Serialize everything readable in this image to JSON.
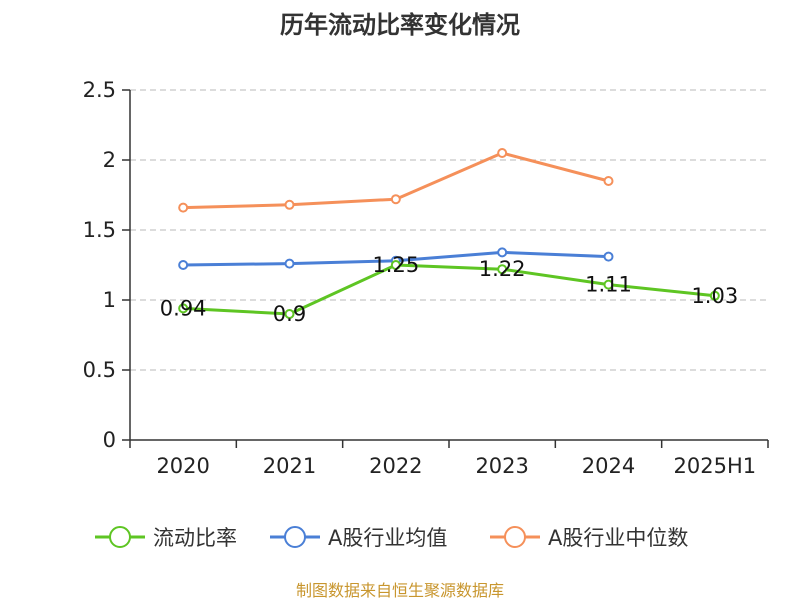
{
  "chart_data": {
    "type": "line",
    "title": "历年流动比率变化情况",
    "xlabel": "",
    "ylabel": "",
    "categories": [
      "2020",
      "2021",
      "2022",
      "2023",
      "2024",
      "2025H1"
    ],
    "ylim": [
      0,
      2.5
    ],
    "yticks": [
      "0",
      "0.5",
      "1",
      "1.5",
      "2",
      "2.5"
    ],
    "grid": true,
    "legend_position": "bottom",
    "series": [
      {
        "name": "流动比率",
        "color": "#5ec523",
        "values": [
          0.94,
          0.9,
          1.25,
          1.22,
          1.11,
          1.03
        ],
        "labels": [
          "0.94",
          "0.9",
          "1.25",
          "1.22",
          "1.11",
          "1.03"
        ]
      },
      {
        "name": "A股行业均值",
        "color": "#4a7fd6",
        "values": [
          1.25,
          1.26,
          1.28,
          1.34,
          1.31,
          null
        ],
        "labels": []
      },
      {
        "name": "A股行业中位数",
        "color": "#f5905a",
        "values": [
          1.66,
          1.68,
          1.72,
          2.05,
          1.85,
          null
        ],
        "labels": []
      }
    ],
    "source": "制图数据来自恒生聚源数据库",
    "source_color": "#c8962e"
  }
}
